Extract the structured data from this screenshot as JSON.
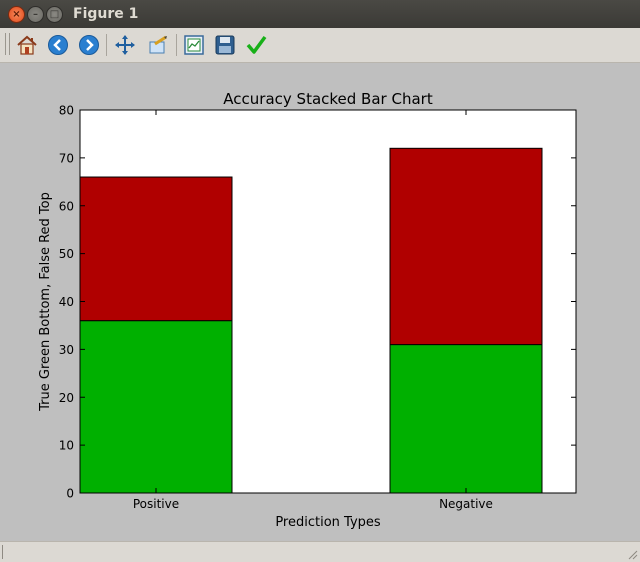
{
  "window": {
    "title": "Figure 1"
  },
  "toolbar": {
    "tools": [
      "home-icon",
      "back-arrow-icon",
      "forward-arrow-icon",
      "pan-icon",
      "zoom-icon",
      "subplots-icon",
      "save-icon",
      "check-icon"
    ]
  },
  "chart_data": {
    "type": "bar",
    "stacked": true,
    "title": "Accuracy Stacked Bar Chart",
    "xlabel": "Prediction Types",
    "ylabel": "True Green Bottom, False Red Top",
    "categories": [
      "Positive",
      "Negative"
    ],
    "series": [
      {
        "color": "#00b000",
        "values": [
          36,
          31
        ]
      },
      {
        "color": "#b00000",
        "values": [
          30,
          41
        ]
      }
    ],
    "ylim": [
      0,
      80
    ],
    "yticks": [
      0,
      10,
      20,
      30,
      40,
      50,
      60,
      70,
      80
    ],
    "grid": false
  }
}
